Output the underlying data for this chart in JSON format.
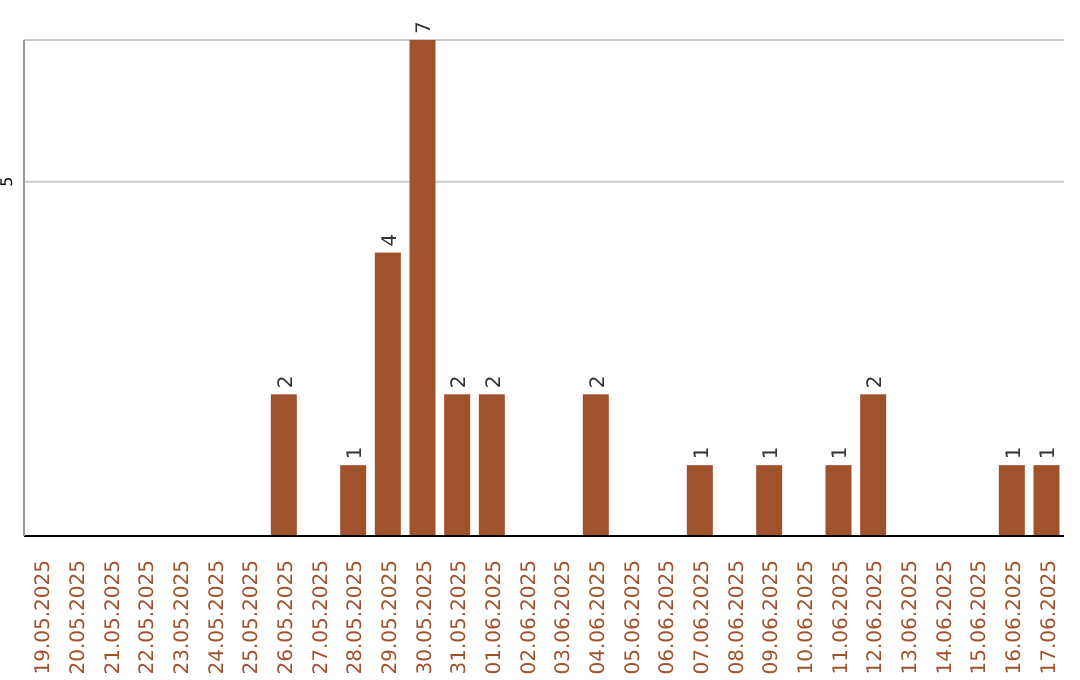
{
  "chart_data": {
    "type": "bar",
    "categories": [
      "19.05.2025",
      "20.05.2025",
      "21.05.2025",
      "22.05.2025",
      "23.05.2025",
      "24.05.2025",
      "25.05.2025",
      "26.05.2025",
      "27.05.2025",
      "28.05.2025",
      "29.05.2025",
      "30.05.2025",
      "31.05.2025",
      "01.06.2025",
      "02.06.2025",
      "03.06.2025",
      "04.06.2025",
      "05.06.2025",
      "06.06.2025",
      "07.06.2025",
      "08.06.2025",
      "09.06.2025",
      "10.06.2025",
      "11.06.2025",
      "12.06.2025",
      "13.06.2025",
      "14.06.2025",
      "15.06.2025",
      "16.06.2025",
      "17.06.2025"
    ],
    "values": [
      0,
      0,
      0,
      0,
      0,
      0,
      0,
      2,
      0,
      1,
      4,
      7,
      2,
      2,
      0,
      0,
      2,
      0,
      0,
      1,
      0,
      1,
      0,
      1,
      2,
      0,
      0,
      0,
      1,
      1
    ],
    "value_labels": [
      null,
      null,
      null,
      null,
      null,
      null,
      null,
      "2",
      null,
      "1",
      "4",
      "7",
      "2",
      "2",
      null,
      null,
      "2",
      null,
      null,
      "1",
      null,
      "1",
      null,
      "1",
      "2",
      null,
      null,
      null,
      "1",
      "1"
    ],
    "color": "#a0522d",
    "ylim": [
      0,
      7
    ],
    "yticks": [
      5
    ],
    "grid": "y"
  }
}
